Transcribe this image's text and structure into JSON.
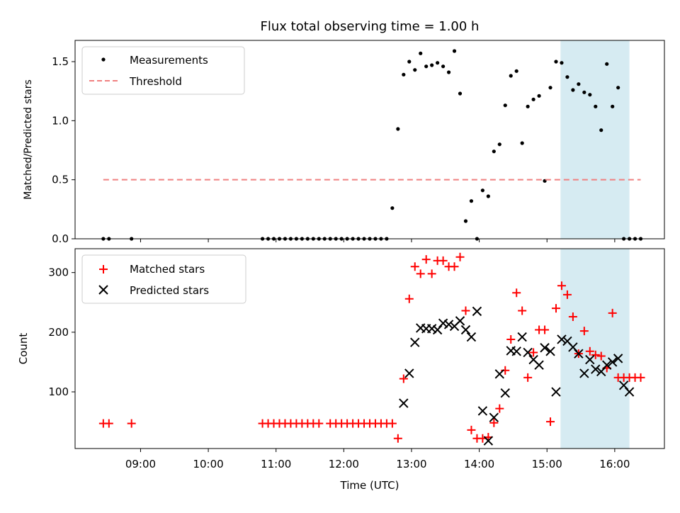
{
  "chart_data": [
    {
      "type": "scatter",
      "title": "Flux total observing time = 1.00 h",
      "xlabel": "",
      "ylabel": "Matched/Predicted stars",
      "ylim": [
        0,
        1.68
      ],
      "xlim": [
        "08:02",
        "16:44"
      ],
      "yticks": [
        0.0,
        0.5,
        1.0,
        1.5
      ],
      "ytick_labels": [
        "0.0",
        "0.5",
        "1.0",
        "1.5"
      ],
      "highlight_x": [
        "15:12",
        "16:13"
      ],
      "legend_position": "upper left",
      "series": [
        {
          "name": "Measurements",
          "marker": "dot",
          "color": "#000000",
          "x": [
            "08:27",
            "08:32",
            "08:52",
            "10:48",
            "10:53",
            "10:58",
            "11:03",
            "11:08",
            "11:13",
            "11:18",
            "11:23",
            "11:28",
            "11:33",
            "11:38",
            "11:43",
            "11:48",
            "11:53",
            "11:58",
            "12:03",
            "12:08",
            "12:13",
            "12:18",
            "12:23",
            "12:28",
            "12:33",
            "12:38",
            "12:43",
            "12:48",
            "12:53",
            "12:58",
            "13:03",
            "13:08",
            "13:13",
            "13:18",
            "13:23",
            "13:28",
            "13:33",
            "13:38",
            "13:43",
            "13:48",
            "13:53",
            "13:58",
            "14:03",
            "14:08",
            "14:13",
            "14:18",
            "14:23",
            "14:28",
            "14:33",
            "14:38",
            "14:43",
            "14:48",
            "14:53",
            "14:58",
            "15:03",
            "15:08",
            "15:13",
            "15:18",
            "15:23",
            "15:28",
            "15:33",
            "15:38",
            "15:43",
            "15:48",
            "15:53",
            "15:58",
            "16:03",
            "16:08",
            "16:13",
            "16:18",
            "16:23"
          ],
          "y": [
            0.0,
            0.0,
            0.0,
            0.0,
            0.0,
            0.0,
            0.0,
            0.0,
            0.0,
            0.0,
            0.0,
            0.0,
            0.0,
            0.0,
            0.0,
            0.0,
            0.0,
            0.0,
            0.0,
            0.0,
            0.0,
            0.0,
            0.0,
            0.0,
            0.0,
            0.0,
            0.26,
            0.93,
            1.39,
            1.5,
            1.43,
            1.57,
            1.46,
            1.47,
            1.49,
            1.46,
            1.41,
            1.59,
            1.23,
            0.15,
            0.32,
            0.0,
            0.41,
            0.36,
            0.74,
            0.8,
            1.13,
            1.38,
            1.42,
            0.81,
            1.12,
            1.18,
            1.21,
            0.49,
            1.28,
            1.5,
            1.49,
            1.37,
            1.26,
            1.31,
            1.24,
            1.22,
            1.12,
            0.92,
            1.48,
            1.12,
            1.28,
            0.0,
            0.0,
            0.0,
            0.0
          ]
        },
        {
          "name": "Threshold",
          "style": "dashed",
          "color": "#f08080",
          "x": [
            "08:27",
            "16:23"
          ],
          "y": [
            0.5,
            0.5
          ]
        }
      ]
    },
    {
      "type": "scatter",
      "title": "",
      "xlabel": "Time (UTC)",
      "ylabel": "Count",
      "ylim": [
        5,
        340
      ],
      "xlim": [
        "08:02",
        "16:44"
      ],
      "yticks": [
        100,
        200,
        300
      ],
      "ytick_labels": [
        "100",
        "200",
        "300"
      ],
      "xticks": [
        "09:00",
        "10:00",
        "11:00",
        "12:00",
        "13:00",
        "14:00",
        "15:00",
        "16:00"
      ],
      "highlight_x": [
        "15:12",
        "16:13"
      ],
      "legend_position": "upper left",
      "series": [
        {
          "name": "Matched stars",
          "marker": "plus",
          "color": "#ff0000",
          "x": [
            "08:27",
            "08:32",
            "08:52",
            "10:48",
            "10:53",
            "10:58",
            "11:03",
            "11:08",
            "11:13",
            "11:18",
            "11:23",
            "11:28",
            "11:33",
            "11:38",
            "11:48",
            "11:53",
            "11:58",
            "12:03",
            "12:08",
            "12:13",
            "12:18",
            "12:23",
            "12:28",
            "12:33",
            "12:38",
            "12:43",
            "12:48",
            "12:53",
            "12:58",
            "13:03",
            "13:08",
            "13:13",
            "13:18",
            "13:23",
            "13:28",
            "13:33",
            "13:38",
            "13:43",
            "13:48",
            "13:53",
            "13:58",
            "14:03",
            "14:08",
            "14:13",
            "14:18",
            "14:23",
            "14:28",
            "14:33",
            "14:38",
            "14:43",
            "14:48",
            "14:53",
            "14:58",
            "15:03",
            "15:08",
            "15:13",
            "15:18",
            "15:23",
            "15:28",
            "15:33",
            "15:38",
            "15:43",
            "15:48",
            "15:53",
            "15:58",
            "16:03",
            "16:08",
            "16:13",
            "16:18",
            "16:23"
          ],
          "y": [
            47,
            47,
            47,
            47,
            47,
            47,
            47,
            47,
            47,
            47,
            47,
            47,
            47,
            47,
            47,
            47,
            47,
            47,
            47,
            47,
            47,
            47,
            47,
            47,
            47,
            47,
            22,
            122,
            256,
            310,
            298,
            322,
            298,
            320,
            320,
            310,
            310,
            326,
            236,
            36,
            22,
            22,
            24,
            48,
            72,
            136,
            188,
            266,
            236,
            124,
            166,
            204,
            204,
            50,
            240,
            278,
            263,
            226,
            164,
            202,
            168,
            162,
            160,
            140,
            232,
            124,
            124,
            124,
            124,
            124
          ]
        },
        {
          "name": "Predicted stars",
          "marker": "x",
          "color": "#000000",
          "x": [
            "12:53",
            "12:58",
            "13:03",
            "13:08",
            "13:13",
            "13:18",
            "13:23",
            "13:28",
            "13:33",
            "13:38",
            "13:43",
            "13:48",
            "13:53",
            "13:58",
            "14:03",
            "14:08",
            "14:13",
            "14:18",
            "14:23",
            "14:28",
            "14:33",
            "14:38",
            "14:43",
            "14:48",
            "14:53",
            "14:58",
            "15:03",
            "15:08",
            "15:13",
            "15:18",
            "15:23",
            "15:28",
            "15:33",
            "15:38",
            "15:43",
            "15:48",
            "15:53",
            "15:58",
            "16:03",
            "16:08",
            "16:13"
          ],
          "y": [
            81,
            131,
            183,
            207,
            206,
            206,
            204,
            215,
            213,
            210,
            219,
            204,
            192,
            235,
            68,
            18,
            57,
            130,
            98,
            169,
            168,
            192,
            166,
            154,
            145,
            174,
            168,
            100,
            188,
            185,
            175,
            164,
            131,
            154,
            138,
            134,
            145,
            150,
            156,
            111,
            100
          ]
        }
      ]
    }
  ]
}
